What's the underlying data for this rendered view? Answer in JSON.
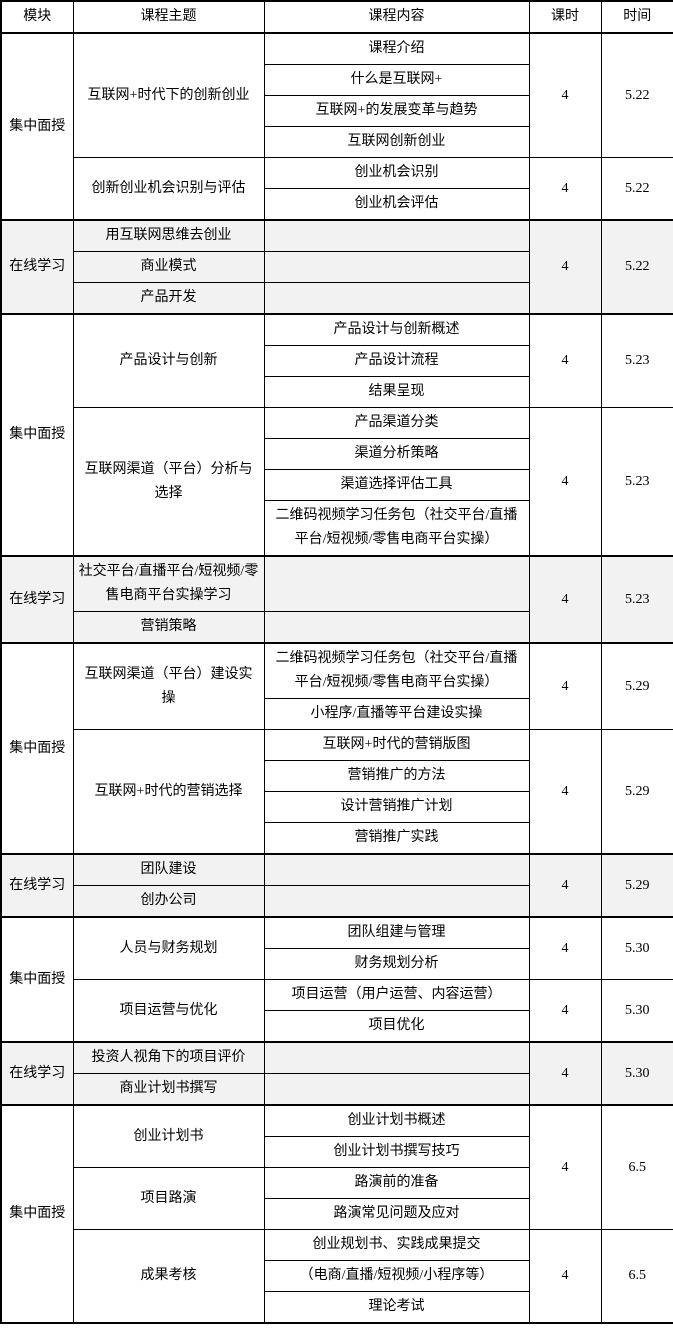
{
  "table": {
    "headers": [
      "模块",
      "课程主题",
      "课程内容",
      "课时",
      "时间"
    ],
    "colors": {
      "background": "#ffffff",
      "online_section_background": "#f2f2f2",
      "border": "#000000",
      "text": "#000000"
    },
    "sections": [
      {
        "module": "集中面授",
        "type": "offline",
        "themes": [
          {
            "title": "互联网+时代下的创新创业",
            "contents": [
              "课程介绍",
              "什么是互联网+",
              "互联网+的发展变革与趋势",
              "互联网创新创业"
            ]
          },
          {
            "title": "创新创业机会识别与评估",
            "contents": [
              "创业机会识别",
              "创业机会评估"
            ]
          }
        ],
        "schedule": [
          {
            "rows": 4,
            "hours": "4",
            "date": "5.22"
          },
          {
            "rows": 2,
            "hours": "4",
            "date": "5.22"
          }
        ]
      },
      {
        "module": "在线学习",
        "type": "online",
        "themes": [
          {
            "title": "用互联网思维去创业",
            "contents": [
              ""
            ]
          },
          {
            "title": "商业模式",
            "contents": [
              ""
            ]
          },
          {
            "title": "产品开发",
            "contents": [
              ""
            ]
          }
        ],
        "schedule": [
          {
            "rows": 3,
            "hours": "4",
            "date": "5.22"
          }
        ]
      },
      {
        "module": "集中面授",
        "type": "offline",
        "themes": [
          {
            "title": "产品设计与创新",
            "contents": [
              "产品设计与创新概述",
              "产品设计流程",
              "结果呈现"
            ]
          },
          {
            "title": "互联网渠道（平台）分析与选择",
            "contents": [
              "产品渠道分类",
              "渠道分析策略",
              "渠道选择评估工具",
              "二维码视频学习任务包（社交平台/直播平台/短视频/零售电商平台实操）"
            ]
          }
        ],
        "schedule": [
          {
            "rows": 3,
            "hours": "4",
            "date": "5.23"
          },
          {
            "rows": 4,
            "hours": "4",
            "date": "5.23"
          }
        ]
      },
      {
        "module": "在线学习",
        "type": "online",
        "themes": [
          {
            "title": "社交平台/直播平台/短视频/零售电商平台实操学习",
            "contents": [
              ""
            ]
          },
          {
            "title": "营销策略",
            "contents": [
              ""
            ]
          }
        ],
        "schedule": [
          {
            "rows": 2,
            "hours": "4",
            "date": "5.23"
          }
        ]
      },
      {
        "module": "集中面授",
        "type": "offline",
        "themes": [
          {
            "title": "互联网渠道（平台）建设实操",
            "contents": [
              "二维码视频学习任务包（社交平台/直播平台/短视频/零售电商平台实操）",
              "小程序/直播等平台建设实操"
            ]
          },
          {
            "title": "互联网+时代的营销选择",
            "contents": [
              "互联网+时代的营销版图",
              "营销推广的方法",
              "设计营销推广计划",
              "营销推广实践"
            ]
          }
        ],
        "schedule": [
          {
            "rows": 2,
            "hours": "4",
            "date": "5.29"
          },
          {
            "rows": 4,
            "hours": "4",
            "date": "5.29"
          }
        ]
      },
      {
        "module": "在线学习",
        "type": "online",
        "themes": [
          {
            "title": "团队建设",
            "contents": [
              ""
            ]
          },
          {
            "title": "创办公司",
            "contents": [
              ""
            ]
          }
        ],
        "schedule": [
          {
            "rows": 2,
            "hours": "4",
            "date": "5.29"
          }
        ]
      },
      {
        "module": "集中面授",
        "type": "offline",
        "themes": [
          {
            "title": "人员与财务规划",
            "contents": [
              "团队组建与管理",
              "财务规划分析"
            ]
          },
          {
            "title": "项目运营与优化",
            "contents": [
              "项目运营（用户运营、内容运营）",
              "项目优化"
            ]
          }
        ],
        "schedule": [
          {
            "rows": 2,
            "hours": "4",
            "date": "5.30"
          },
          {
            "rows": 2,
            "hours": "4",
            "date": "5.30"
          }
        ]
      },
      {
        "module": "在线学习",
        "type": "online",
        "themes": [
          {
            "title": "投资人视角下的项目评价",
            "contents": [
              ""
            ]
          },
          {
            "title": "商业计划书撰写",
            "contents": [
              ""
            ]
          }
        ],
        "schedule": [
          {
            "rows": 2,
            "hours": "4",
            "date": "5.30"
          }
        ]
      },
      {
        "module": "集中面授",
        "type": "offline",
        "themes": [
          {
            "title": "创业计划书",
            "contents": [
              "创业计划书概述",
              "创业计划书撰写技巧"
            ]
          },
          {
            "title": "项目路演",
            "contents": [
              "路演前的准备",
              "路演常见问题及应对"
            ]
          },
          {
            "title": "成果考核",
            "contents": [
              "创业规划书、实践成果提交",
              "（电商/直播/短视频/小程序等）",
              "理论考试"
            ]
          }
        ],
        "schedule": [
          {
            "rows": 4,
            "hours": "4",
            "date": "6.5"
          },
          {
            "rows": 3,
            "hours": "4",
            "date": "6.5"
          }
        ]
      }
    ]
  }
}
